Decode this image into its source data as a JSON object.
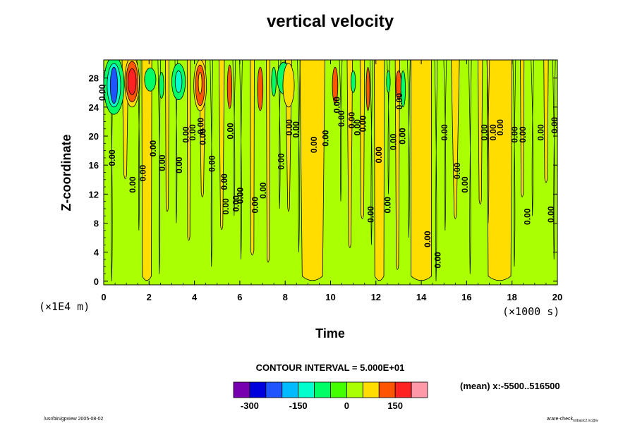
{
  "chart_data": {
    "type": "heatmap",
    "title": "vertical velocity",
    "xlabel": "Time",
    "ylabel": "Z-coordinate",
    "x_unit": "(×1000 s)",
    "y_unit": "(×1E4 m)",
    "xlim": [
      0,
      20
    ],
    "ylim": [
      -0.5,
      30.5
    ],
    "x_ticks": [
      "0",
      "2",
      "4",
      "6",
      "8",
      "10",
      "12",
      "14",
      "16",
      "18",
      "20"
    ],
    "y_ticks": [
      "0",
      "4",
      "8",
      "12",
      "16",
      "20",
      "24",
      "28"
    ],
    "contour_label": "0.00",
    "contour_labels": [
      {
        "x": 0.06,
        "y": 26.0
      },
      {
        "x": 0.5,
        "y": 17.0
      },
      {
        "x": 1.4,
        "y": 13.3
      },
      {
        "x": 1.85,
        "y": 14.9
      },
      {
        "x": 2.3,
        "y": 18.3
      },
      {
        "x": 2.7,
        "y": 16.3
      },
      {
        "x": 3.45,
        "y": 16.0
      },
      {
        "x": 3.75,
        "y": 20.2
      },
      {
        "x": 4.05,
        "y": 20.5
      },
      {
        "x": 4.5,
        "y": 19.9
      },
      {
        "x": 4.4,
        "y": 21.4
      },
      {
        "x": 4.9,
        "y": 16.2
      },
      {
        "x": 5.45,
        "y": 13.7
      },
      {
        "x": 5.7,
        "y": 20.7
      },
      {
        "x": 5.5,
        "y": 10.3
      },
      {
        "x": 5.95,
        "y": 10.7
      },
      {
        "x": 6.15,
        "y": 11.8
      },
      {
        "x": 6.8,
        "y": 10.5
      },
      {
        "x": 7.15,
        "y": 12.5
      },
      {
        "x": 7.95,
        "y": 16.5
      },
      {
        "x": 8.3,
        "y": 21.2
      },
      {
        "x": 8.6,
        "y": 20.9
      },
      {
        "x": 9.4,
        "y": 18.8
      },
      {
        "x": 9.9,
        "y": 19.7
      },
      {
        "x": 10.4,
        "y": 24.3
      },
      {
        "x": 10.6,
        "y": 22.4
      },
      {
        "x": 11.05,
        "y": 22.2
      },
      {
        "x": 11.3,
        "y": 21.2
      },
      {
        "x": 11.55,
        "y": 21.7
      },
      {
        "x": 11.9,
        "y": 9.2
      },
      {
        "x": 12.25,
        "y": 17.4
      },
      {
        "x": 12.65,
        "y": 10.5
      },
      {
        "x": 12.9,
        "y": 19.2
      },
      {
        "x": 13.3,
        "y": 20.0
      },
      {
        "x": 13.15,
        "y": 24.8
      },
      {
        "x": 14.4,
        "y": 5.8
      },
      {
        "x": 14.85,
        "y": 2.9
      },
      {
        "x": 15.15,
        "y": 20.5
      },
      {
        "x": 15.7,
        "y": 15.2
      },
      {
        "x": 16.05,
        "y": 13.3
      },
      {
        "x": 16.9,
        "y": 20.5
      },
      {
        "x": 17.3,
        "y": 20.5
      },
      {
        "x": 17.6,
        "y": 21.2
      },
      {
        "x": 18.25,
        "y": 20.2
      },
      {
        "x": 18.6,
        "y": 20.2
      },
      {
        "x": 18.8,
        "y": 8.9
      },
      {
        "x": 19.4,
        "y": 20.5
      },
      {
        "x": 19.85,
        "y": 9.2
      },
      {
        "x": 20.0,
        "y": 21.5
      }
    ],
    "contour_interval_label": "CONTOUR INTERVAL = 5.000E+01",
    "colorbar": {
      "colors": [
        "#7700b0",
        "#0000dd",
        "#1e55ff",
        "#00bbff",
        "#00ffcc",
        "#00ff66",
        "#44ff00",
        "#aaff00",
        "#ffdd00",
        "#ff5500",
        "#ff2222",
        "#ff99aa"
      ],
      "tick_labels": [
        "-300",
        "-150",
        "0",
        "150"
      ]
    },
    "level_colors": {
      "strong_negative": "#1e55ff",
      "moderate_negative": "#00ffcc",
      "weak_negative": "#00ff66",
      "near_zero": "#aaff00",
      "weak_positive": "#ffdd00",
      "moderate_positive": "#ff5500",
      "strong_positive": "#ff2222"
    },
    "mean_label": "(mean) x:-5500..516500"
  },
  "footer": {
    "left": "/usr/bin/gpview 2005-08-02",
    "right_main": "arare-check",
    "right_sub": "rotbasic2.nc@w"
  }
}
